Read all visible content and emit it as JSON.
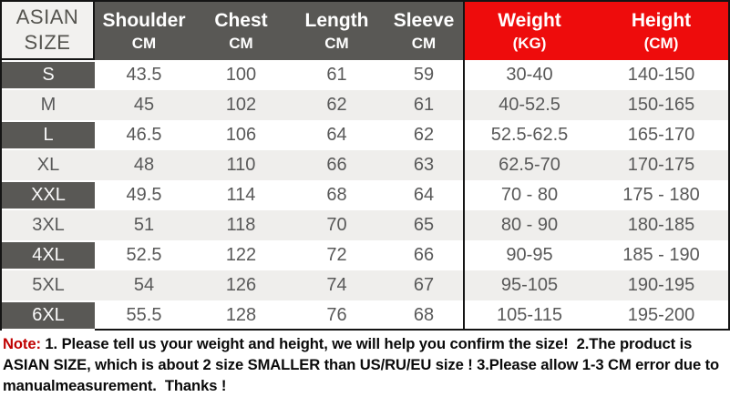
{
  "table": {
    "corner": {
      "line1": "ASIAN",
      "line2": "SIZE"
    },
    "columns": [
      {
        "label": "Shoulder",
        "unit": "CM"
      },
      {
        "label": "Chest",
        "unit": "CM"
      },
      {
        "label": "Length",
        "unit": "CM"
      },
      {
        "label": "Sleeve",
        "unit": "CM"
      },
      {
        "label": "Weight",
        "unit": "(KG)"
      },
      {
        "label": "Height",
        "unit": "(CM)"
      }
    ],
    "rows": [
      {
        "size": "S",
        "shoulder": "43.5",
        "chest": "100",
        "length": "61",
        "sleeve": "59",
        "weight": "30-40",
        "height": "140-150"
      },
      {
        "size": "M",
        "shoulder": "45",
        "chest": "102",
        "length": "62",
        "sleeve": "61",
        "weight": "40-52.5",
        "height": "150-165"
      },
      {
        "size": "L",
        "shoulder": "46.5",
        "chest": "106",
        "length": "64",
        "sleeve": "62",
        "weight": "52.5-62.5",
        "height": "165-170"
      },
      {
        "size": "XL",
        "shoulder": "48",
        "chest": "110",
        "length": "66",
        "sleeve": "63",
        "weight": "62.5-70",
        "height": "170-175"
      },
      {
        "size": "XXL",
        "shoulder": "49.5",
        "chest": "114",
        "length": "68",
        "sleeve": "64",
        "weight": "70 - 80",
        "height": "175 - 180"
      },
      {
        "size": "3XL",
        "shoulder": "51",
        "chest": "118",
        "length": "70",
        "sleeve": "65",
        "weight": "80 - 90",
        "height": "180-185"
      },
      {
        "size": "4XL",
        "shoulder": "52.5",
        "chest": "122",
        "length": "72",
        "sleeve": "66",
        "weight": "90-95",
        "height": "185 - 190"
      },
      {
        "size": "5XL",
        "shoulder": "54",
        "chest": "126",
        "length": "74",
        "sleeve": "67",
        "weight": "95-105",
        "height": "190-195"
      },
      {
        "size": "6XL",
        "shoulder": "55.5",
        "chest": "128",
        "length": "76",
        "sleeve": "68",
        "weight": "105-115",
        "height": "195-200"
      }
    ]
  },
  "note": {
    "label": "Note:",
    "text": " 1. Please tell us your weight and height, we will help you confirm the size!  2.The product is ASIAN SIZE, which is about 2 size SMALLER than US/RU/EU size ! 3.Please allow 1-3 CM error due to manualmeasurement.  Thanks !"
  },
  "colors": {
    "header_dark": "#595855",
    "header_red": "#ee0c0c",
    "row_alt": "#efeeec",
    "cell_text": "#595959",
    "note_label_red": "#c00000",
    "border_black": "#141414"
  }
}
